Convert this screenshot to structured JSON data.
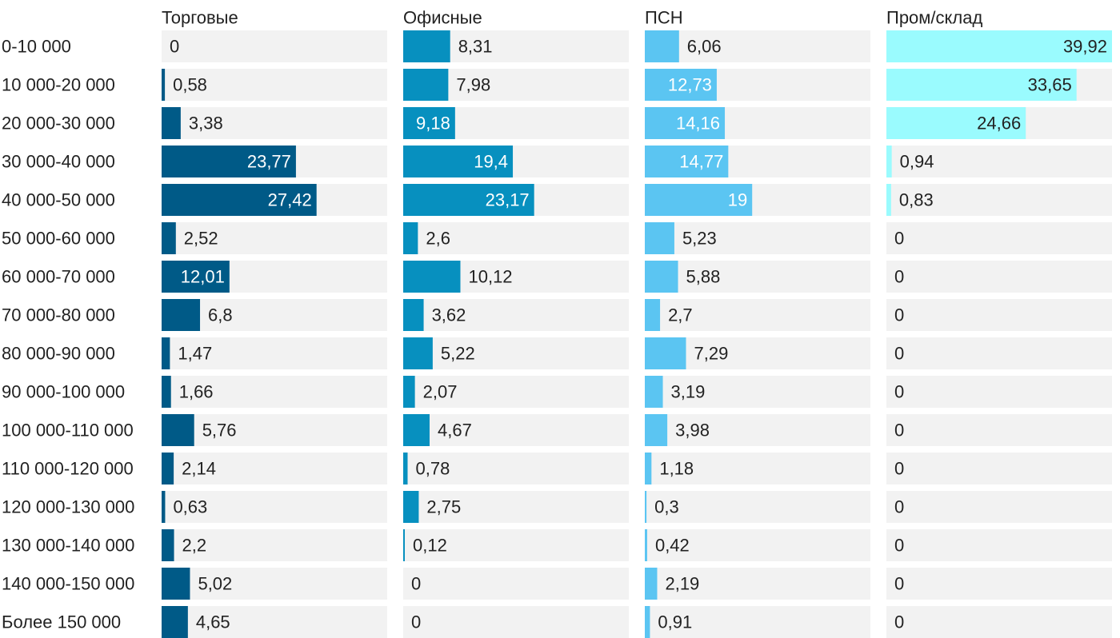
{
  "chart_data": {
    "type": "bar",
    "orientation": "horizontal",
    "layout": "small-multiples",
    "categories": [
      "0-10 000",
      "10 000-20 000",
      "20 000-30 000",
      "30 000-40 000",
      "40 000-50 000",
      "50 000-60 000",
      "60 000-70 000",
      "70 000-80 000",
      "80 000-90 000",
      "90 000-100 000",
      "100 000-110 000",
      "110 000-120 000",
      "120 000-130 000",
      "130 000-140 000",
      "140 000-150 000",
      "Более 150 000"
    ],
    "series": [
      {
        "name": "Торговые",
        "color": "#005A87",
        "values": [
          0,
          0.58,
          3.38,
          23.77,
          27.42,
          2.52,
          12.01,
          6.8,
          1.47,
          1.66,
          5.76,
          2.14,
          0.63,
          2.2,
          5.02,
          4.65
        ],
        "labels": [
          "0",
          "0,58",
          "3,38",
          "23,77",
          "27,42",
          "2,52",
          "12,01",
          "6,8",
          "1,47",
          "1,66",
          "5,76",
          "2,14",
          "0,63",
          "2,2",
          "5,02",
          "4,65"
        ]
      },
      {
        "name": "Офисные",
        "color": "#0790BF",
        "values": [
          8.31,
          7.98,
          9.18,
          19.4,
          23.17,
          2.6,
          10.12,
          3.62,
          5.22,
          2.07,
          4.67,
          0.78,
          2.75,
          0.12,
          0,
          0
        ],
        "labels": [
          "8,31",
          "7,98",
          "9,18",
          "19,4",
          "23,17",
          "2,6",
          "10,12",
          "3,62",
          "5,22",
          "2,07",
          "4,67",
          "0,78",
          "2,75",
          "0,12",
          "0",
          "0"
        ]
      },
      {
        "name": "ПСН",
        "color": "#5BC5F2",
        "values": [
          6.06,
          12.73,
          14.16,
          14.77,
          19,
          5.23,
          5.88,
          2.7,
          7.29,
          3.19,
          3.98,
          1.18,
          0.3,
          0.42,
          2.19,
          0.91
        ],
        "labels": [
          "6,06",
          "12,73",
          "14,16",
          "14,77",
          "19",
          "5,23",
          "5,88",
          "2,7",
          "7,29",
          "3,19",
          "3,98",
          "1,18",
          "0,3",
          "0,42",
          "2,19",
          "0,91"
        ]
      },
      {
        "name": "Пром/склад",
        "color": "#9AFBFE",
        "values": [
          39.92,
          33.65,
          24.66,
          0.94,
          0.83,
          0,
          0,
          0,
          0,
          0,
          0,
          0,
          0,
          0,
          0,
          0
        ],
        "labels": [
          "39,92",
          "33,65",
          "24,66",
          "0,94",
          "0,83",
          "0",
          "0",
          "0",
          "0",
          "0",
          "0",
          "0",
          "0",
          "0",
          "0",
          "0"
        ]
      }
    ],
    "label_colors": {
      "inside_light": "#FFFFFF",
      "inside_dark": "#222222",
      "outside": "#222222"
    },
    "track_color": "#F2F2F2",
    "title": "",
    "xlabel": "",
    "ylabel": "",
    "grid": false,
    "legend": "none"
  }
}
